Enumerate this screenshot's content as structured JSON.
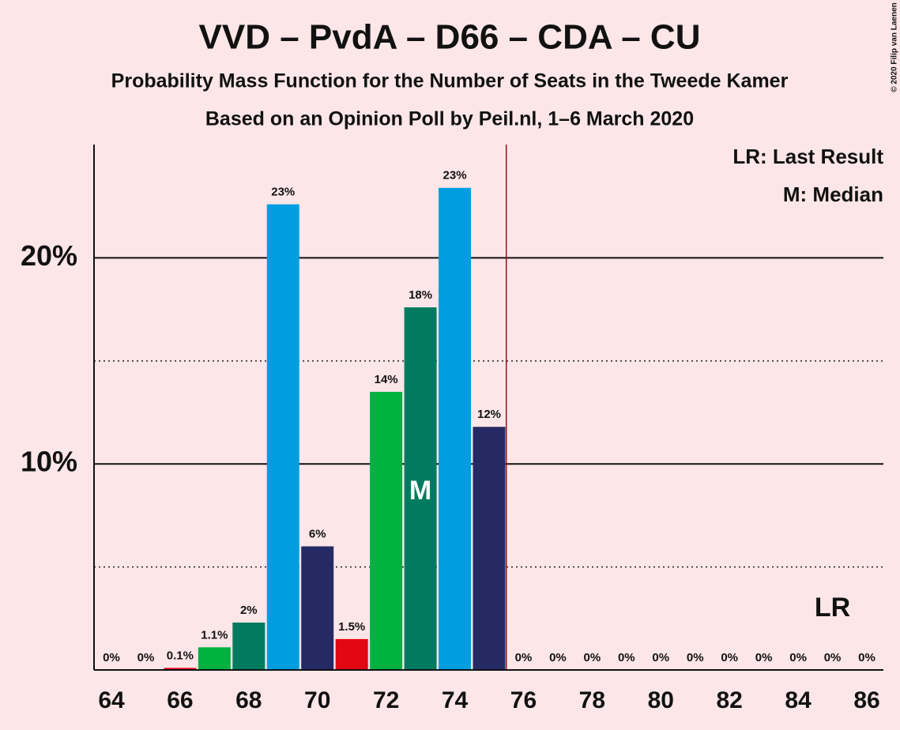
{
  "chart_data": {
    "type": "bar",
    "title": "VVD – PvdA – D66 – CDA – CU",
    "subtitle": "Probability Mass Function for the Number of Seats in the Tweede Kamer",
    "subtitle2": "Based on an Opinion Poll by Peil.nl, 1–6 March 2020",
    "copyright": "© 2020 Filip van Laenen",
    "categories": [
      "64",
      null,
      "66",
      null,
      "68",
      null,
      "70",
      null,
      "72",
      null,
      "74",
      null,
      "76",
      null,
      "78",
      null,
      "80",
      null,
      "82",
      null,
      "84",
      null,
      "86"
    ],
    "values": [
      0,
      0,
      0.1,
      1.1,
      2.3,
      22.6,
      6.0,
      1.5,
      13.5,
      17.6,
      23.4,
      11.8,
      0,
      0,
      0,
      0,
      0,
      0,
      0,
      0,
      0,
      0,
      0
    ],
    "value_labels": [
      "0%",
      "0%",
      "0.1%",
      "1.1%",
      "2%",
      "23%",
      "6%",
      "1.5%",
      "14%",
      "18%",
      "23%",
      "12%",
      "0%",
      "0%",
      "0%",
      "0%",
      "0%",
      "0%",
      "0%",
      "0%",
      "0%",
      "0%",
      "0%"
    ],
    "colors": [
      "#e30613",
      "#e30613",
      "#e30613",
      "#00b13f",
      "#007b5f",
      "#009ee0",
      "#262a64",
      "#e30613",
      "#00b13f",
      "#007b5f",
      "#009ee0",
      "#262a64",
      "#e30613",
      "#00b13f",
      "#007b5f",
      "#009ee0",
      "#262a64",
      "#e30613",
      "#00b13f",
      "#007b5f",
      "#009ee0",
      "#262a64",
      "#e30613"
    ],
    "ylim": [
      0,
      25.5
    ],
    "yticks": [
      {
        "value": 10,
        "label": "10%"
      },
      {
        "value": 20,
        "label": "20%"
      }
    ],
    "minor_yticks": [
      5,
      15
    ],
    "median_index": 9,
    "median_label": "M",
    "last_result_index": 21,
    "last_result_label": "LR",
    "majority_index": 11.5,
    "legend": [
      "LR: Last Result",
      "M: Median"
    ]
  }
}
